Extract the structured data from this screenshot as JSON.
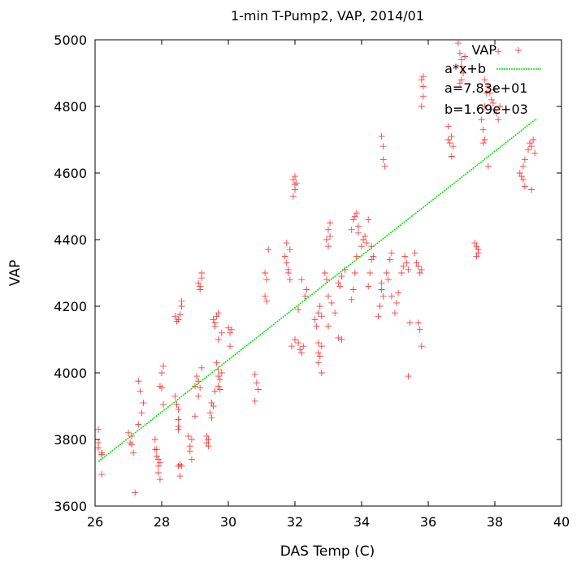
{
  "chart_data": {
    "type": "scatter",
    "title": "1-min T-Pump2, VAP, 2014/01",
    "xlabel": "DAS Temp (C)",
    "ylabel": "VAP",
    "xlim": [
      26,
      40
    ],
    "ylim": [
      3600,
      5000
    ],
    "xticks": [
      "26",
      "28",
      "30",
      "32",
      "34",
      "36",
      "38",
      "40"
    ],
    "yticks": [
      "3600",
      "3800",
      "4000",
      "4200",
      "4400",
      "4600",
      "4800",
      "5000"
    ],
    "grid": false,
    "legend_position": "top-right",
    "series": [
      {
        "name": "VAP",
        "kind": "points",
        "marker": "plus",
        "color": "#ff0000",
        "points": [
          [
            26.1,
            3830
          ],
          [
            26.1,
            3790
          ],
          [
            26.1,
            3775
          ],
          [
            26.2,
            3760
          ],
          [
            26.2,
            3755
          ],
          [
            26.2,
            3695
          ],
          [
            27.0,
            3820
          ],
          [
            27.05,
            3790
          ],
          [
            27.1,
            3810
          ],
          [
            27.1,
            3785
          ],
          [
            27.15,
            3760
          ],
          [
            27.2,
            3640
          ],
          [
            27.3,
            3975
          ],
          [
            27.35,
            3945
          ],
          [
            27.4,
            3880
          ],
          [
            27.45,
            3910
          ],
          [
            27.3,
            3845
          ],
          [
            27.8,
            3800
          ],
          [
            27.85,
            3770
          ],
          [
            27.85,
            3750
          ],
          [
            27.9,
            3740
          ],
          [
            27.9,
            3720
          ],
          [
            27.9,
            3700
          ],
          [
            27.95,
            3680
          ],
          [
            27.95,
            3730
          ],
          [
            27.8,
            3770
          ],
          [
            27.95,
            3960
          ],
          [
            28.0,
            4000
          ],
          [
            28.0,
            3955
          ],
          [
            28.05,
            3905
          ],
          [
            28.05,
            4020
          ],
          [
            28.4,
            3930
          ],
          [
            28.45,
            3905
          ],
          [
            28.5,
            3890
          ],
          [
            28.5,
            3860
          ],
          [
            28.5,
            3840
          ],
          [
            28.5,
            3830
          ],
          [
            28.5,
            3720
          ],
          [
            28.55,
            3725
          ],
          [
            28.55,
            3690
          ],
          [
            28.6,
            3720
          ],
          [
            28.4,
            4170
          ],
          [
            28.45,
            4155
          ],
          [
            28.5,
            4160
          ],
          [
            28.55,
            4175
          ],
          [
            28.6,
            4200
          ],
          [
            28.6,
            4215
          ],
          [
            28.8,
            3810
          ],
          [
            28.85,
            3780
          ],
          [
            28.85,
            3765
          ],
          [
            28.9,
            3740
          ],
          [
            28.9,
            3800
          ],
          [
            29.0,
            3870
          ],
          [
            29.0,
            3960
          ],
          [
            29.05,
            3990
          ],
          [
            29.1,
            3975
          ],
          [
            29.15,
            3955
          ],
          [
            29.2,
            4015
          ],
          [
            29.1,
            3930
          ],
          [
            29.1,
            4270
          ],
          [
            29.15,
            4260
          ],
          [
            29.2,
            4285
          ],
          [
            29.2,
            4300
          ],
          [
            29.15,
            4250
          ],
          [
            29.35,
            3810
          ],
          [
            29.35,
            3790
          ],
          [
            29.4,
            3780
          ],
          [
            29.4,
            3800
          ],
          [
            29.45,
            3880
          ],
          [
            29.5,
            3865
          ],
          [
            29.5,
            3910
          ],
          [
            29.55,
            3900
          ],
          [
            29.6,
            3945
          ],
          [
            29.55,
            4160
          ],
          [
            29.6,
            4150
          ],
          [
            29.65,
            4170
          ],
          [
            29.6,
            4140
          ],
          [
            29.7,
            4180
          ],
          [
            29.7,
            4100
          ],
          [
            29.65,
            4030
          ],
          [
            29.7,
            4010
          ],
          [
            29.7,
            3990
          ],
          [
            29.75,
            3980
          ],
          [
            29.7,
            3960
          ],
          [
            29.75,
            3950
          ],
          [
            29.8,
            4000
          ],
          [
            29.8,
            4120
          ],
          [
            30.0,
            4135
          ],
          [
            30.05,
            4120
          ],
          [
            30.1,
            4130
          ],
          [
            30.05,
            4080
          ],
          [
            30.8,
            3995
          ],
          [
            30.85,
            3970
          ],
          [
            30.9,
            3950
          ],
          [
            30.8,
            3915
          ],
          [
            31.1,
            4300
          ],
          [
            31.15,
            4280
          ],
          [
            31.1,
            4230
          ],
          [
            31.15,
            4215
          ],
          [
            31.2,
            4370
          ],
          [
            31.7,
            4350
          ],
          [
            31.75,
            4330
          ],
          [
            31.8,
            4310
          ],
          [
            31.8,
            4300
          ],
          [
            31.85,
            4280
          ],
          [
            31.75,
            4390
          ],
          [
            31.85,
            4370
          ],
          [
            31.9,
            4080
          ],
          [
            31.95,
            4580
          ],
          [
            32.0,
            4565
          ],
          [
            32.0,
            4550
          ],
          [
            32.05,
            4570
          ],
          [
            31.95,
            4530
          ],
          [
            32.0,
            4590
          ],
          [
            32.1,
            4090
          ],
          [
            32.15,
            4070
          ],
          [
            32.2,
            4060
          ],
          [
            32.25,
            4080
          ],
          [
            32.0,
            4100
          ],
          [
            32.2,
            4280
          ],
          [
            32.3,
            4230
          ],
          [
            32.35,
            4250
          ],
          [
            32.1,
            4190
          ],
          [
            32.6,
            4160
          ],
          [
            32.65,
            4140
          ],
          [
            32.7,
            4180
          ],
          [
            32.75,
            4200
          ],
          [
            32.8,
            4170
          ],
          [
            32.7,
            4090
          ],
          [
            32.7,
            4060
          ],
          [
            32.75,
            4050
          ],
          [
            32.7,
            4030
          ],
          [
            32.8,
            4000
          ],
          [
            32.8,
            4080
          ],
          [
            32.95,
            4400
          ],
          [
            33.0,
            4380
          ],
          [
            33.05,
            4410
          ],
          [
            33.0,
            4430
          ],
          [
            33.05,
            4450
          ],
          [
            32.9,
            4300
          ],
          [
            32.95,
            4280
          ],
          [
            33.0,
            4230
          ],
          [
            33.1,
            4210
          ],
          [
            33.0,
            4140
          ],
          [
            33.2,
            4180
          ],
          [
            33.3,
            4270
          ],
          [
            33.35,
            4260
          ],
          [
            33.4,
            4290
          ],
          [
            33.5,
            4310
          ],
          [
            33.3,
            4105
          ],
          [
            33.4,
            4100
          ],
          [
            33.7,
            4220
          ],
          [
            33.75,
            4250
          ],
          [
            33.8,
            4300
          ],
          [
            33.85,
            4350
          ],
          [
            33.7,
            4430
          ],
          [
            33.75,
            4460
          ],
          [
            33.8,
            4470
          ],
          [
            33.85,
            4480
          ],
          [
            33.9,
            4440
          ],
          [
            33.9,
            4420
          ],
          [
            34.0,
            4380
          ],
          [
            34.05,
            4400
          ],
          [
            34.1,
            4410
          ],
          [
            34.15,
            4390
          ],
          [
            34.2,
            4460
          ],
          [
            34.2,
            4260
          ],
          [
            34.25,
            4300
          ],
          [
            34.3,
            4380
          ],
          [
            34.3,
            4340
          ],
          [
            34.35,
            4350
          ],
          [
            34.5,
            4170
          ],
          [
            34.55,
            4200
          ],
          [
            34.6,
            4250
          ],
          [
            34.6,
            4270
          ],
          [
            34.65,
            4230
          ],
          [
            34.6,
            4710
          ],
          [
            34.65,
            4680
          ],
          [
            34.65,
            4640
          ],
          [
            34.7,
            4620
          ],
          [
            34.75,
            4300
          ],
          [
            34.8,
            4280
          ],
          [
            34.85,
            4340
          ],
          [
            34.9,
            4360
          ],
          [
            34.9,
            4230
          ],
          [
            35.0,
            4180
          ],
          [
            35.05,
            4210
          ],
          [
            35.1,
            4240
          ],
          [
            35.2,
            4300
          ],
          [
            35.25,
            4320
          ],
          [
            35.3,
            4350
          ],
          [
            35.35,
            4330
          ],
          [
            35.4,
            4310
          ],
          [
            35.45,
            4150
          ],
          [
            35.4,
            3990
          ],
          [
            35.6,
            4360
          ],
          [
            35.65,
            4330
          ],
          [
            35.7,
            4320
          ],
          [
            35.75,
            4300
          ],
          [
            35.8,
            4310
          ],
          [
            35.7,
            4150
          ],
          [
            35.75,
            4130
          ],
          [
            35.8,
            4080
          ],
          [
            35.8,
            4880
          ],
          [
            35.85,
            4860
          ],
          [
            35.85,
            4890
          ],
          [
            35.85,
            4830
          ],
          [
            35.8,
            4800
          ],
          [
            36.6,
            4700
          ],
          [
            36.65,
            4690
          ],
          [
            36.7,
            4710
          ],
          [
            36.75,
            4680
          ],
          [
            36.7,
            4650
          ],
          [
            36.6,
            4740
          ],
          [
            36.9,
            4990
          ],
          [
            36.95,
            4960
          ],
          [
            37.0,
            4940
          ],
          [
            37.0,
            4920
          ],
          [
            37.05,
            4900
          ],
          [
            37.1,
            4950
          ],
          [
            36.95,
            4870
          ],
          [
            37.0,
            4880
          ],
          [
            37.4,
            4390
          ],
          [
            37.45,
            4380
          ],
          [
            37.5,
            4370
          ],
          [
            37.5,
            4360
          ],
          [
            37.45,
            4350
          ],
          [
            37.6,
            4760
          ],
          [
            37.65,
            4730
          ],
          [
            37.7,
            4800
          ],
          [
            37.7,
            4700
          ],
          [
            37.65,
            4690
          ],
          [
            37.8,
            4860
          ],
          [
            37.85,
            4840
          ],
          [
            37.9,
            4820
          ],
          [
            37.95,
            4810
          ],
          [
            38.0,
            4790
          ],
          [
            38.0,
            4850
          ],
          [
            38.05,
            4780
          ],
          [
            38.1,
            4760
          ],
          [
            38.15,
            4800
          ],
          [
            38.1,
            4965
          ],
          [
            37.7,
            4880
          ],
          [
            37.75,
            4840
          ],
          [
            37.8,
            4620
          ],
          [
            38.75,
            4600
          ],
          [
            38.8,
            4590
          ],
          [
            38.85,
            4580
          ],
          [
            38.85,
            4620
          ],
          [
            38.9,
            4640
          ],
          [
            38.9,
            4560
          ],
          [
            39.0,
            4670
          ],
          [
            39.05,
            4690
          ],
          [
            39.1,
            4680
          ],
          [
            39.15,
            4700
          ],
          [
            39.1,
            4550
          ],
          [
            39.2,
            4660
          ]
        ]
      },
      {
        "name": "a*x+b",
        "kind": "line",
        "color": "#00e000",
        "a": 78.3,
        "b": 1690,
        "x_range": [
          26.1,
          39.25
        ]
      }
    ],
    "annotations": [
      "a=7.83e+01",
      "b=1.69e+03"
    ]
  }
}
